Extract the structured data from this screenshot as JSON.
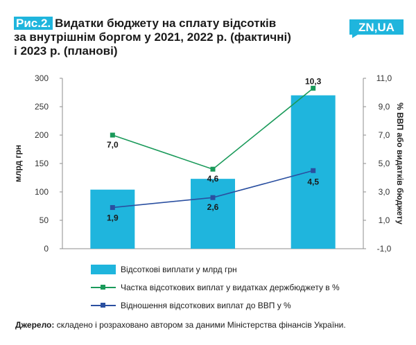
{
  "figure": {
    "label": "Рис.2.",
    "title_lines": [
      "Видатки бюджету на сплату відсотків",
      "за внутрішнім боргом у 2021, 2022 р. (фактичні)",
      "і 2023 р. (планові)"
    ],
    "logo": "ZN,UA",
    "source_label": "Джерело:",
    "source_text": " складено і розраховано автором за даними Міністерства фінансів України."
  },
  "colors": {
    "bar": "#1fb5dd",
    "share_line": "#1a9a5a",
    "gdp_line": "#2a4fa0",
    "accent": "#1fb5dd"
  },
  "chart_data": {
    "type": "bar",
    "categories": [
      "",
      "",
      ""
    ],
    "ylabel": "млрд грн",
    "y2label": "% ВВП або видатків бюджету",
    "ylim": [
      0,
      300
    ],
    "y_ticks": [
      "0",
      "50",
      "100",
      "150",
      "200",
      "250",
      "300"
    ],
    "y2lim": [
      -1,
      11
    ],
    "y2_ticks": [
      "-1,0",
      "1,0",
      "3,0",
      "5,0",
      "7,0",
      "9,0",
      "11,0"
    ],
    "grid": false,
    "legend_position": "bottom",
    "series": [
      {
        "name": "Відсоткові виплати у млрд грн",
        "type": "bar",
        "axis": "left",
        "values": [
          104,
          123,
          270
        ]
      },
      {
        "name": "Частка відсоткових виплат у видатках держбюджету в %",
        "type": "line",
        "axis": "right",
        "values": [
          7.0,
          4.6,
          10.3
        ],
        "labels": [
          "7,0",
          "4,6",
          "10,3"
        ]
      },
      {
        "name": "Відношення відсоткових виплат до ВВП у %",
        "type": "line",
        "axis": "right",
        "values": [
          1.9,
          2.6,
          4.5
        ],
        "labels": [
          "1,9",
          "2,6",
          "4,5"
        ]
      }
    ]
  }
}
